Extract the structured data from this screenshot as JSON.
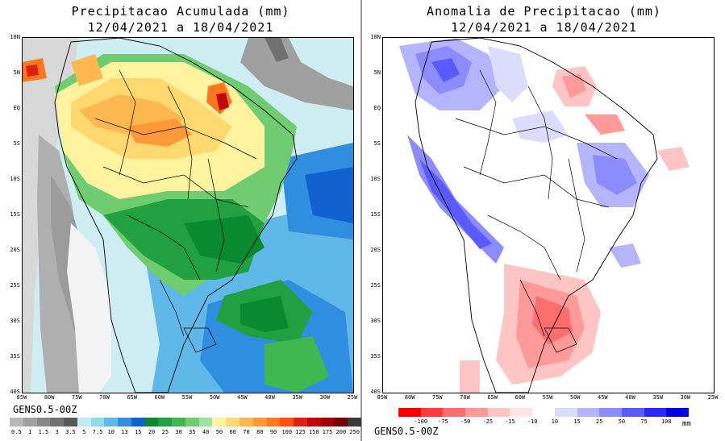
{
  "left_panel": {
    "title_line1": "Precipitacao Acumulada (mm)",
    "title_line2": "12/04/2021 a 18/04/2021",
    "model_label": "GENS0.5-00Z",
    "colorbar": {
      "labels": [
        "0.5",
        "1",
        "1.5",
        "3",
        "3.5",
        "5",
        "7.5",
        "10",
        "13",
        "15",
        "20",
        "25",
        "30",
        "35",
        "40",
        "50",
        "60",
        "70",
        "80",
        "90",
        "100",
        "125",
        "150",
        "175",
        "200",
        "250"
      ],
      "colors": [
        "#b8b8b8",
        "#a0a0a0",
        "#888888",
        "#707070",
        "#585858",
        "#bfeef2",
        "#8fdce8",
        "#5fb8e8",
        "#2f8ee0",
        "#1060d0",
        "#0a8a30",
        "#20a040",
        "#40b850",
        "#70cc70",
        "#a0e0a0",
        "#fff3a0",
        "#ffd870",
        "#ffb850",
        "#ff9838",
        "#ff7820",
        "#ff5010",
        "#e02010",
        "#c00808",
        "#a00000",
        "#780000",
        "#3a3a3a"
      ]
    }
  },
  "right_panel": {
    "title_line1": "Anomalia de Precipitacao (mm)",
    "title_line2": "12/04/2021 a 18/04/2021",
    "model_label": "GENS0.5-00Z",
    "unit": "mm",
    "colorbar": {
      "labels": [
        "-100",
        "-75",
        "-50",
        "-25",
        "-15",
        "-10",
        "10",
        "15",
        "25",
        "50",
        "75",
        "100"
      ],
      "colors": [
        "#ff0000",
        "#ff3c3c",
        "#ff6e6e",
        "#ff9a9a",
        "#ffc4c4",
        "#ffe4e4",
        "#ffffff",
        "#dcdcff",
        "#b4b4ff",
        "#8c8cff",
        "#5a5aff",
        "#2828ff",
        "#0000e0"
      ]
    }
  },
  "axes": {
    "lat_labels": [
      "10N",
      "5N",
      "EQ",
      "5S",
      "10S",
      "15S",
      "20S",
      "25S",
      "30S",
      "35S",
      "40S"
    ],
    "lon_labels": [
      "85W",
      "80W",
      "75W",
      "70W",
      "65W",
      "60W",
      "55W",
      "50W",
      "45W",
      "40W",
      "35W",
      "30W",
      "25W"
    ]
  }
}
